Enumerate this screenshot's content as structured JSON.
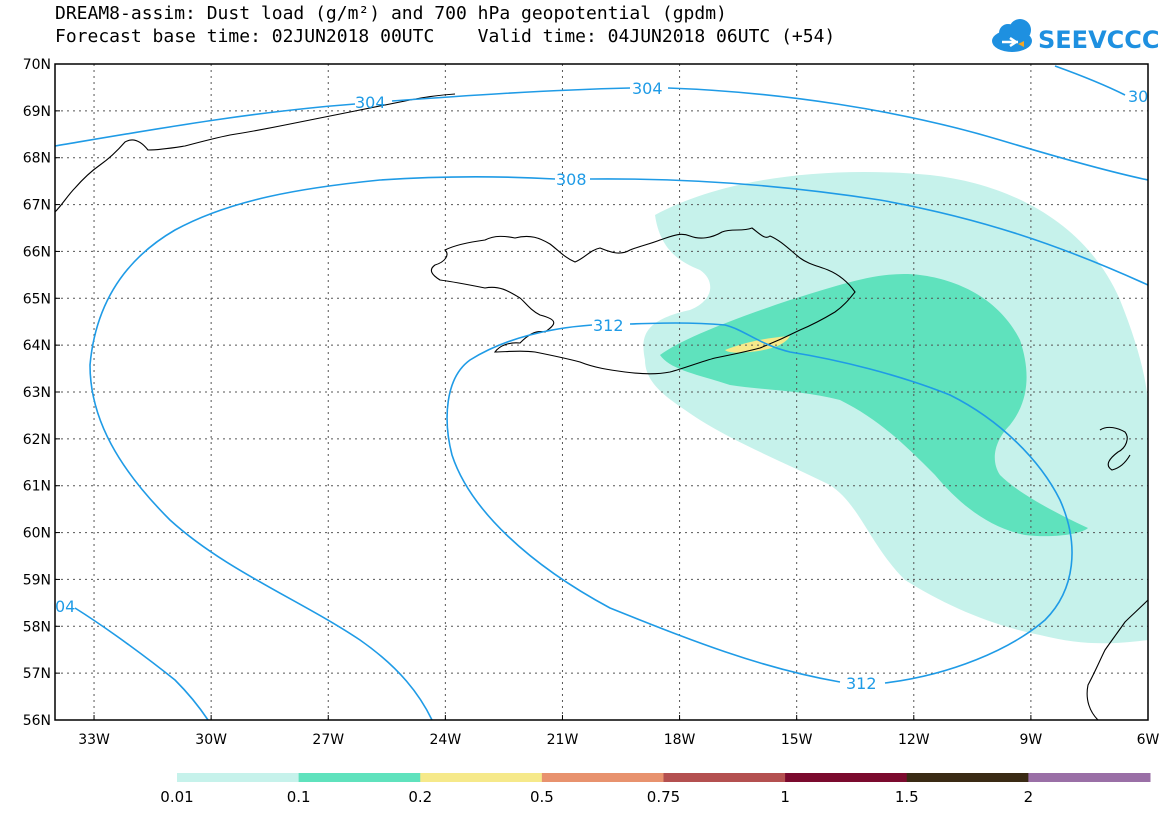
{
  "header": {
    "title_line1": "DREAM8-assim: Dust load (g/m²) and 700 hPa geopotential (gpdm)",
    "title_line2": "Forecast base time: 02JUN2018 00UTC    Valid time: 04JUN2018 06UTC (+54)"
  },
  "logo": {
    "text": "SEEVCCC",
    "icon": "cloud-icon",
    "color": "#1e90e0"
  },
  "map": {
    "region": "Iceland and North Atlantic",
    "lon_range": [
      -34,
      -6
    ],
    "lat_range": [
      56,
      70
    ],
    "lat_labels": [
      "70N",
      "69N",
      "68N",
      "67N",
      "66N",
      "65N",
      "64N",
      "63N",
      "62N",
      "61N",
      "60N",
      "59N",
      "58N",
      "57N",
      "56N"
    ],
    "lon_labels": [
      "33W",
      "30W",
      "27W",
      "24W",
      "21W",
      "18W",
      "15W",
      "12W",
      "9W",
      "6W"
    ],
    "contour_color": "#1f9be6",
    "contour_labels": [
      "304",
      "304",
      "30",
      "308",
      "312",
      "312",
      "04"
    ],
    "gridlines": "dotted"
  },
  "legend": {
    "colors": [
      "#c6f2eb",
      "#5fe2bd",
      "#f6e98a",
      "#e8926e",
      "#b45050",
      "#7b0a2e",
      "#3a2a14",
      "#9a6fa6"
    ],
    "labels": [
      "0.01",
      "0.1",
      "0.2",
      "0.5",
      "0.75",
      "1",
      "1.5",
      "2"
    ]
  }
}
